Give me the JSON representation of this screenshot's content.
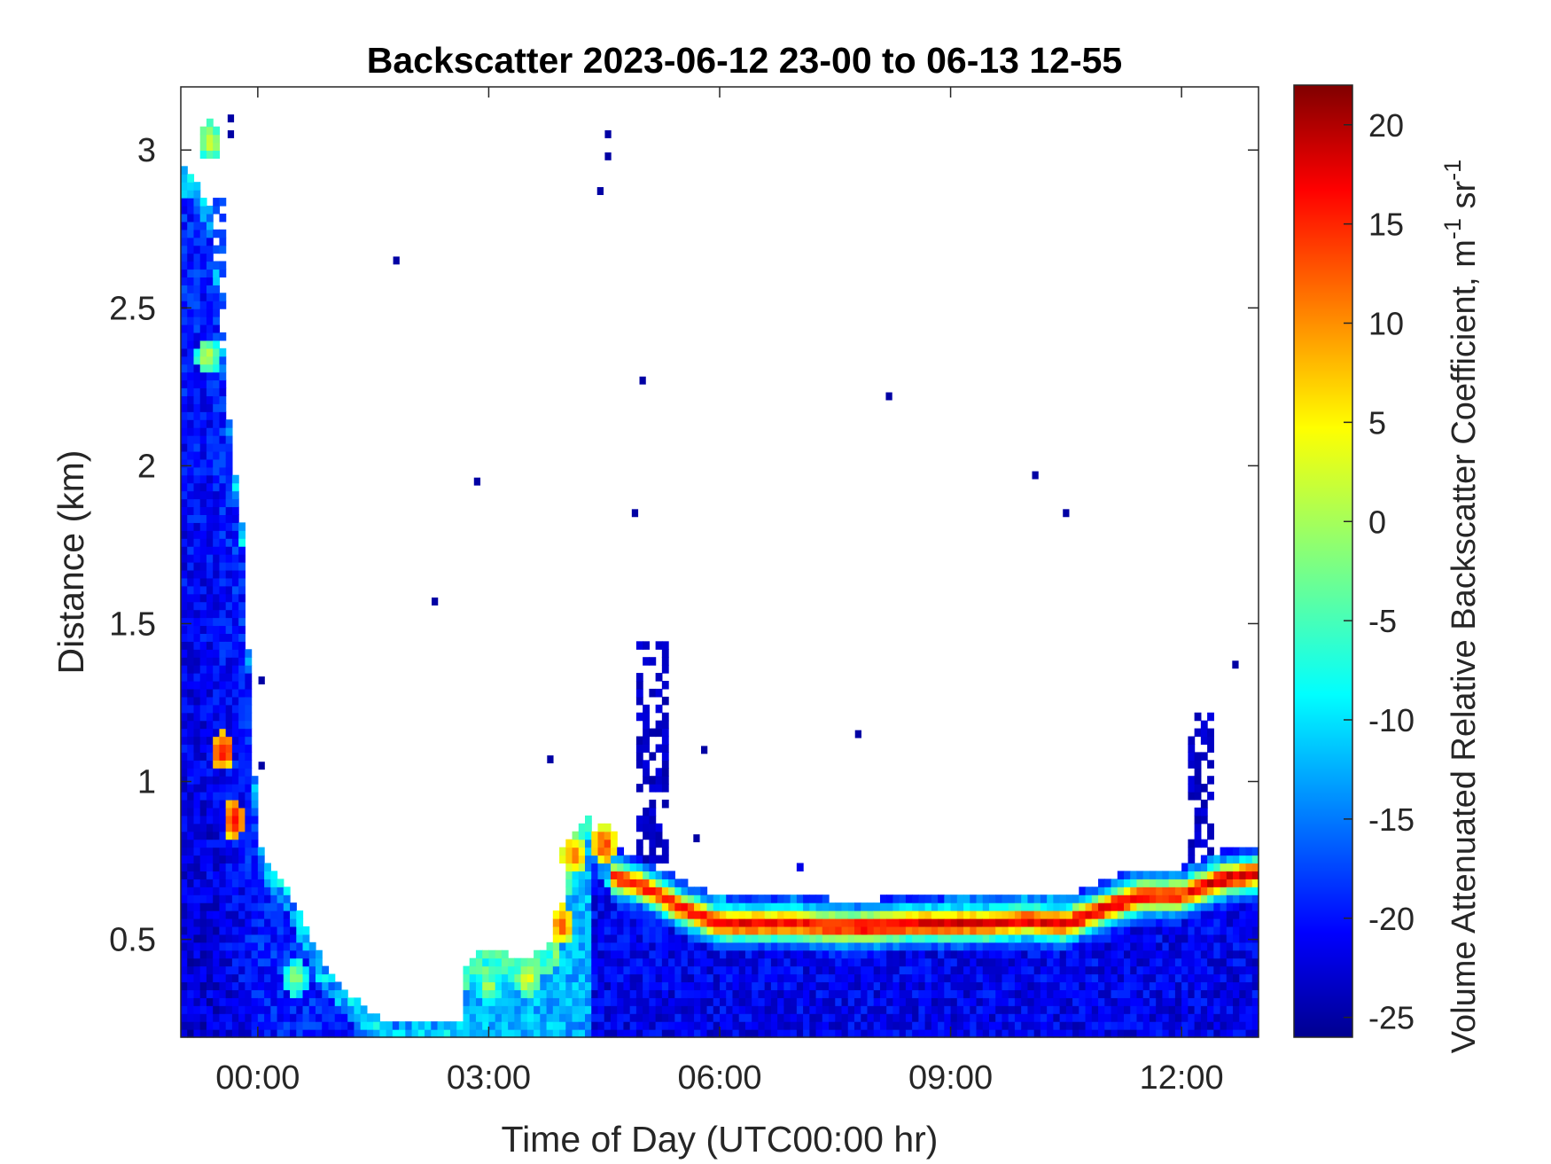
{
  "chart_data": {
    "type": "heatmap",
    "title": "Backscatter 2023-06-12 23-00 to 06-13 12-55",
    "xlabel": "Time of Day (UTC00:00 hr)",
    "ylabel": "Distance (km)",
    "colorbar_label": "Volume Attenuated Relative Backscatter Coefficient, m",
    "colorbar_label_sup1": "-1",
    "colorbar_label_mid": " sr",
    "colorbar_label_sup2": "-1",
    "x_unit": "hours (UTC), 0 = 00:00 on 06-13",
    "xlim": [
      -1.0,
      13.0
    ],
    "ylim": [
      0.19,
      3.2
    ],
    "clim": [
      -26,
      22
    ],
    "xticks": [
      {
        "value": 0,
        "label": "00:00"
      },
      {
        "value": 3,
        "label": "03:00"
      },
      {
        "value": 6,
        "label": "06:00"
      },
      {
        "value": 9,
        "label": "09:00"
      },
      {
        "value": 12,
        "label": "12:00"
      }
    ],
    "yticks": [
      {
        "value": 0.5,
        "label": "0.5"
      },
      {
        "value": 1.0,
        "label": "1"
      },
      {
        "value": 1.5,
        "label": "1.5"
      },
      {
        "value": 2.0,
        "label": "2"
      },
      {
        "value": 2.5,
        "label": "2.5"
      },
      {
        "value": 3.0,
        "label": "3"
      }
    ],
    "cticks": [
      {
        "value": 20,
        "label": "20"
      },
      {
        "value": 15,
        "label": "15"
      },
      {
        "value": 10,
        "label": "10"
      },
      {
        "value": 5,
        "label": "5"
      },
      {
        "value": 0,
        "label": "0"
      },
      {
        "value": -5,
        "label": "-5"
      },
      {
        "value": -10,
        "label": "-10"
      },
      {
        "value": -15,
        "label": "-15"
      },
      {
        "value": -20,
        "label": "-20"
      },
      {
        "value": -25,
        "label": "-25"
      }
    ],
    "colormap": "jet",
    "colormap_stops": [
      "#00008f",
      "#0000ff",
      "#00ffff",
      "#ffff00",
      "#ff0000",
      "#800000"
    ],
    "layers": [
      {
        "name": "residual-layer-early",
        "x": [
          -1.0,
          -0.8,
          -0.6,
          -0.4,
          -0.2,
          0.0,
          0.4,
          0.8,
          1.2,
          1.6,
          2.0,
          2.4,
          2.7
        ],
        "top": [
          2.95,
          2.9,
          2.8,
          2.2,
          1.8,
          0.8,
          0.65,
          0.45,
          0.32,
          0.25,
          0.25,
          0.24,
          0.24
        ],
        "value": -19
      },
      {
        "name": "aerosol-mixed-layer-night",
        "x": [
          2.7,
          3.0,
          3.3,
          3.6,
          3.9,
          4.1,
          4.3
        ],
        "top": [
          0.42,
          0.48,
          0.45,
          0.45,
          0.5,
          0.82,
          0.9
        ],
        "value": -12
      },
      {
        "name": "boundary-layer-day",
        "x": [
          4.3,
          4.6,
          5.0,
          5.5,
          6.0,
          6.5,
          7.0,
          7.5,
          8.0,
          8.5,
          9.0,
          9.5,
          10.0,
          10.5,
          11.0,
          11.5,
          12.0,
          12.5,
          13.0
        ],
        "top": [
          0.85,
          0.72,
          0.7,
          0.66,
          0.63,
          0.62,
          0.63,
          0.6,
          0.6,
          0.62,
          0.63,
          0.63,
          0.63,
          0.63,
          0.67,
          0.72,
          0.72,
          0.77,
          0.78
        ],
        "value": -21
      }
    ],
    "cloud_band": {
      "x": [
        4.6,
        5.0,
        5.5,
        6.0,
        6.5,
        7.0,
        7.5,
        8.0,
        8.5,
        9.0,
        9.5,
        10.0,
        10.5,
        11.0,
        11.5,
        12.0,
        12.5,
        13.0
      ],
      "center": [
        0.7,
        0.67,
        0.6,
        0.55,
        0.55,
        0.55,
        0.54,
        0.54,
        0.55,
        0.55,
        0.55,
        0.56,
        0.55,
        0.6,
        0.64,
        0.64,
        0.69,
        0.71
      ],
      "peak": [
        14,
        16,
        16,
        18,
        17,
        17,
        16,
        18,
        18,
        18,
        18,
        17,
        18,
        18,
        18,
        16,
        19,
        19
      ],
      "thickness": 0.055
    },
    "hotspots": [
      {
        "x": -0.45,
        "y": 1.1,
        "value": 18
      },
      {
        "x": -0.3,
        "y": 0.88,
        "value": 18
      },
      {
        "x": -0.65,
        "y": 2.35,
        "value": 4
      },
      {
        "x": -0.62,
        "y": 3.03,
        "value": 5
      },
      {
        "x": 3.95,
        "y": 0.55,
        "value": 15
      },
      {
        "x": 4.1,
        "y": 0.77,
        "value": 14
      },
      {
        "x": 4.5,
        "y": 0.8,
        "value": 16
      },
      {
        "x": 3.0,
        "y": 0.35,
        "value": 2
      },
      {
        "x": 3.5,
        "y": 0.38,
        "value": 6
      },
      {
        "x": 0.5,
        "y": 0.38,
        "value": 2
      }
    ],
    "sparse_points": [
      {
        "x": 1.8,
        "y": 2.65
      },
      {
        "x": 2.3,
        "y": 1.57
      },
      {
        "x": 2.85,
        "y": 1.95
      },
      {
        "x": 3.8,
        "y": 1.07
      },
      {
        "x": 4.45,
        "y": 2.87
      },
      {
        "x": 4.55,
        "y": 3.05
      },
      {
        "x": 4.55,
        "y": 2.98
      },
      {
        "x": 4.9,
        "y": 1.85
      },
      {
        "x": 5.0,
        "y": 2.27
      },
      {
        "x": 7.8,
        "y": 1.15
      },
      {
        "x": 8.2,
        "y": 2.22
      },
      {
        "x": 10.1,
        "y": 1.97
      },
      {
        "x": 10.5,
        "y": 1.85
      },
      {
        "x": 12.7,
        "y": 1.37
      },
      {
        "x": 5.8,
        "y": 1.1
      },
      {
        "x": 5.7,
        "y": 0.82
      },
      {
        "x": 0.05,
        "y": 1.32
      },
      {
        "x": 0.05,
        "y": 1.05
      },
      {
        "x": -0.35,
        "y": 3.1
      },
      {
        "x": -0.35,
        "y": 3.05
      }
    ],
    "plumes": [
      {
        "x": [
          4.95,
          5.35
        ],
        "bottom": 0.75,
        "top": 1.45,
        "value": -25
      },
      {
        "x": [
          12.05,
          12.45
        ],
        "bottom": 0.7,
        "top": 1.22,
        "value": -25
      },
      {
        "x": [
          -0.75,
          -0.6
        ],
        "bottom": 0.19,
        "top": 2.43,
        "value": -18
      },
      {
        "x": [
          -0.55,
          -0.45
        ],
        "bottom": 0.19,
        "top": 2.85,
        "value": -19
      },
      {
        "x": [
          7.0,
          7.2
        ],
        "bottom": 0.45,
        "top": 0.73,
        "value": -24
      }
    ]
  }
}
